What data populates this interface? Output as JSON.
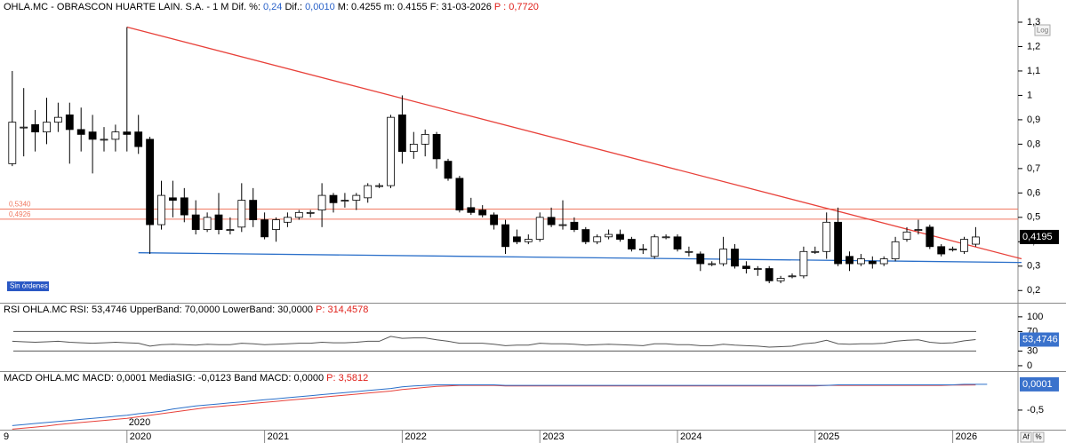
{
  "header": [
    {
      "text": "OHLA.MC - OBRASCON HUARTE LAIN. S.A.  -  1 M Dif. %: ",
      "color": "#000000"
    },
    {
      "text": "0,24",
      "color": "#2a62c9"
    },
    {
      "text": "  Dif.: ",
      "color": "#000000"
    },
    {
      "text": "0,0010",
      "color": "#2a62c9"
    },
    {
      "text": "  M: 0.4255  m: 0.4155  F: 31-03-2026  ",
      "color": "#000000"
    },
    {
      "text": "P : 0,7720",
      "color": "#e0201a"
    }
  ],
  "buttons": {
    "log": "Log",
    "af": "Af",
    "pct": "%"
  },
  "chart_data": [
    {
      "type": "candlestick",
      "xaxis_start_label": "9",
      "note": "Sin órdenes",
      "categories": [
        null,
        null,
        null,
        null,
        null,
        null,
        null,
        null,
        null,
        null,
        "2020",
        null,
        null,
        null,
        null,
        null,
        null,
        null,
        null,
        null,
        null,
        null,
        "2021",
        null,
        null,
        null,
        null,
        null,
        null,
        null,
        null,
        null,
        null,
        null,
        "2022",
        null,
        null,
        null,
        null,
        null,
        null,
        null,
        null,
        null,
        null,
        null,
        "2023",
        null,
        null,
        null,
        null,
        null,
        null,
        null,
        null,
        null,
        null,
        null,
        "2024",
        null,
        null,
        null,
        null,
        null,
        null,
        null,
        null,
        null,
        null,
        null,
        "2025",
        null,
        null,
        null,
        null,
        null,
        null,
        null,
        null,
        null,
        null,
        null,
        "2026",
        null,
        null
      ],
      "open": [
        0.72,
        0.87,
        0.88,
        0.85,
        0.89,
        0.92,
        0.86,
        0.85,
        0.82,
        0.82,
        0.85,
        0.85,
        0.82,
        0.47,
        0.58,
        0.58,
        0.51,
        0.45,
        0.51,
        0.45,
        0.46,
        0.57,
        0.49,
        0.45,
        0.48,
        0.5,
        0.52,
        0.53,
        0.59,
        0.57,
        0.57,
        0.58,
        0.63,
        0.63,
        0.92,
        0.77,
        0.8,
        0.84,
        0.73,
        0.66,
        0.54,
        0.53,
        0.51,
        0.47,
        0.42,
        0.4,
        0.41,
        0.5,
        0.47,
        0.48,
        0.45,
        0.4,
        0.42,
        0.43,
        0.41,
        0.37,
        0.34,
        0.42,
        0.42,
        0.36,
        0.35,
        0.31,
        0.31,
        0.37,
        0.3,
        0.29,
        0.29,
        0.24,
        0.26,
        0.26,
        0.36,
        0.36,
        0.48,
        0.34,
        0.31,
        0.32,
        0.31,
        0.33,
        0.41,
        0.45,
        0.46,
        0.38,
        0.37,
        0.36,
        0.39
      ],
      "high": [
        1.1,
        1.03,
        0.94,
        0.99,
        0.97,
        0.97,
        0.95,
        0.92,
        0.87,
        0.88,
        1.28,
        0.92,
        0.83,
        0.65,
        0.65,
        0.62,
        0.57,
        0.52,
        0.6,
        0.5,
        0.64,
        0.62,
        0.52,
        0.5,
        0.52,
        0.53,
        0.53,
        0.64,
        0.6,
        0.6,
        0.6,
        0.64,
        0.64,
        0.92,
        1.0,
        0.85,
        0.86,
        0.85,
        0.74,
        0.67,
        0.58,
        0.55,
        0.52,
        0.49,
        0.45,
        0.43,
        0.52,
        0.54,
        0.57,
        0.5,
        0.46,
        0.43,
        0.45,
        0.45,
        0.42,
        0.39,
        0.43,
        0.43,
        0.43,
        0.38,
        0.36,
        0.32,
        0.42,
        0.39,
        0.32,
        0.3,
        0.3,
        0.26,
        0.27,
        0.38,
        0.38,
        0.52,
        0.54,
        0.36,
        0.35,
        0.34,
        0.34,
        0.42,
        0.46,
        0.49,
        0.47,
        0.39,
        0.38,
        0.42,
        0.46
      ],
      "low": [
        0.71,
        0.75,
        0.77,
        0.8,
        0.85,
        0.72,
        0.77,
        0.68,
        0.77,
        0.77,
        0.77,
        0.76,
        0.35,
        0.45,
        0.5,
        0.48,
        0.43,
        0.44,
        0.43,
        0.43,
        0.44,
        0.46,
        0.41,
        0.4,
        0.46,
        0.49,
        0.5,
        0.46,
        0.52,
        0.54,
        0.53,
        0.56,
        0.62,
        0.62,
        0.72,
        0.74,
        0.75,
        0.7,
        0.65,
        0.52,
        0.51,
        0.5,
        0.45,
        0.35,
        0.39,
        0.39,
        0.4,
        0.46,
        0.45,
        0.44,
        0.39,
        0.39,
        0.41,
        0.4,
        0.36,
        0.35,
        0.33,
        0.41,
        0.36,
        0.34,
        0.28,
        0.3,
        0.3,
        0.29,
        0.27,
        0.26,
        0.23,
        0.23,
        0.25,
        0.25,
        0.35,
        0.33,
        0.3,
        0.28,
        0.3,
        0.29,
        0.3,
        0.32,
        0.4,
        0.43,
        0.37,
        0.34,
        0.36,
        0.35,
        0.38
      ],
      "close": [
        0.89,
        0.87,
        0.85,
        0.89,
        0.91,
        0.86,
        0.84,
        0.82,
        0.82,
        0.85,
        0.84,
        0.79,
        0.47,
        0.59,
        0.57,
        0.51,
        0.45,
        0.5,
        0.45,
        0.45,
        0.57,
        0.49,
        0.42,
        0.49,
        0.5,
        0.52,
        0.52,
        0.59,
        0.56,
        0.57,
        0.59,
        0.63,
        0.63,
        0.91,
        0.77,
        0.8,
        0.84,
        0.74,
        0.66,
        0.53,
        0.52,
        0.51,
        0.47,
        0.38,
        0.4,
        0.41,
        0.5,
        0.47,
        0.47,
        0.45,
        0.4,
        0.42,
        0.43,
        0.41,
        0.37,
        0.37,
        0.42,
        0.42,
        0.37,
        0.36,
        0.31,
        0.31,
        0.37,
        0.3,
        0.29,
        0.29,
        0.24,
        0.25,
        0.26,
        0.36,
        0.36,
        0.48,
        0.31,
        0.31,
        0.33,
        0.31,
        0.33,
        0.4,
        0.44,
        0.45,
        0.38,
        0.35,
        0.37,
        0.41,
        0.4195
      ],
      "up_color": "#ffffff",
      "down_color": "#000000",
      "ylim": [
        0.15,
        1.34
      ],
      "yticks": [
        {
          "value": 1.3,
          "label": "1,3"
        },
        {
          "value": 1.2,
          "label": "1,2"
        },
        {
          "value": 1.1,
          "label": "1,1"
        },
        1,
        {
          "value": 0.9,
          "label": "0,9"
        },
        {
          "value": 0.8,
          "label": "0,8"
        },
        {
          "value": 0.7,
          "label": "0,7"
        },
        {
          "value": 0.6,
          "label": "0,6"
        },
        {
          "value": 0.5,
          "label": "0,5"
        },
        {
          "value": 0.4,
          "label": "0,4"
        },
        {
          "value": 0.3,
          "label": "0,3"
        },
        {
          "value": 0.2,
          "label": "0,2"
        }
      ],
      "last": {
        "value": 0.4195,
        "label": "0,4195"
      },
      "levels": [
        {
          "value": 0.534,
          "label": "0,5340",
          "color": "#f07860"
        },
        {
          "value": 0.4926,
          "label": "0,4926",
          "color": "#f07860"
        }
      ],
      "trendlines": [
        {
          "color": "#e8413a",
          "points": [
            [
              10,
              1.28
            ],
            [
              88,
              0.33
            ]
          ]
        },
        {
          "color": "#2a6fc9",
          "points": [
            [
              11,
              0.355
            ],
            [
              88,
              0.315
            ]
          ]
        }
      ]
    },
    {
      "type": "line",
      "title_parts": [
        {
          "text": "RSI OHLA.MC RSI: 53,4746  UpperBand: 70,0000  LowerBand: 30,0000  ",
          "color": "#000000"
        },
        {
          "text": "P: 314,4578",
          "color": "#e0201a"
        }
      ],
      "series": [
        {
          "color": "#555555",
          "values": [
            50,
            49,
            48,
            49,
            50,
            48,
            47,
            46,
            47,
            48,
            47,
            46,
            40,
            43,
            44,
            43,
            42,
            44,
            43,
            43,
            46,
            45,
            43,
            44,
            45,
            46,
            46,
            48,
            47,
            47,
            48,
            50,
            50,
            60,
            56,
            57,
            57,
            53,
            50,
            46,
            46,
            46,
            44,
            41,
            42,
            42,
            46,
            45,
            45,
            44,
            42,
            43,
            44,
            43,
            42,
            41,
            45,
            45,
            43,
            43,
            41,
            41,
            44,
            42,
            41,
            40,
            38,
            39,
            40,
            45,
            47,
            52,
            45,
            44,
            45,
            45,
            46,
            50,
            52,
            53,
            48,
            46,
            47,
            51,
            53.4746
          ]
        }
      ],
      "bands": [
        70,
        30
      ],
      "ylim": [
        -11,
        127
      ],
      "yticks": [
        100,
        70,
        30,
        0
      ],
      "last": {
        "value": 53.4746,
        "label": "53,4746"
      }
    },
    {
      "type": "line",
      "title_parts": [
        {
          "text": "MACD OHLA.MC MACD: 0,0001  MediaSIG: -0,0123  Band MACD: 0,0000  ",
          "color": "#000000"
        },
        {
          "text": "P: 3,5812",
          "color": "#e0201a"
        }
      ],
      "series": [
        {
          "color": "#e8413a",
          "values": [
            -0.87,
            -0.85,
            -0.83,
            -0.81,
            -0.78,
            -0.76,
            -0.74,
            -0.72,
            -0.7,
            -0.68,
            -0.66,
            -0.63,
            -0.6,
            -0.57,
            -0.54,
            -0.51,
            -0.48,
            -0.45,
            -0.43,
            -0.41,
            -0.39,
            -0.37,
            -0.35,
            -0.33,
            -0.31,
            -0.29,
            -0.27,
            -0.25,
            -0.23,
            -0.21,
            -0.19,
            -0.17,
            -0.15,
            -0.13,
            -0.1,
            -0.08,
            -0.06,
            -0.04,
            -0.03,
            -0.02,
            -0.02,
            -0.02,
            -0.02,
            -0.03,
            -0.03,
            -0.03,
            -0.03,
            -0.03,
            -0.03,
            -0.03,
            -0.03,
            -0.03,
            -0.03,
            -0.03,
            -0.03,
            -0.03,
            -0.03,
            -0.03,
            -0.03,
            -0.03,
            -0.03,
            -0.03,
            -0.03,
            -0.03,
            -0.03,
            -0.03,
            -0.03,
            -0.03,
            -0.03,
            -0.03,
            -0.03,
            -0.02,
            -0.02,
            -0.02,
            -0.02,
            -0.02,
            -0.02,
            -0.02,
            -0.02,
            -0.02,
            -0.02,
            -0.02,
            -0.015,
            -0.013,
            -0.0123
          ]
        },
        {
          "color": "#2a6fc9",
          "values": [
            -0.8,
            -0.78,
            -0.76,
            -0.74,
            -0.72,
            -0.7,
            -0.68,
            -0.66,
            -0.64,
            -0.62,
            -0.6,
            -0.57,
            -0.55,
            -0.52,
            -0.48,
            -0.45,
            -0.42,
            -0.4,
            -0.38,
            -0.36,
            -0.34,
            -0.32,
            -0.3,
            -0.28,
            -0.26,
            -0.24,
            -0.22,
            -0.2,
            -0.18,
            -0.16,
            -0.14,
            -0.12,
            -0.1,
            -0.08,
            -0.05,
            -0.03,
            -0.02,
            -0.01,
            -0.01,
            -0.01,
            -0.01,
            -0.01,
            -0.01,
            -0.02,
            -0.02,
            -0.02,
            -0.02,
            -0.02,
            -0.02,
            -0.02,
            -0.02,
            -0.02,
            -0.02,
            -0.02,
            -0.02,
            -0.02,
            -0.02,
            -0.02,
            -0.02,
            -0.02,
            -0.02,
            -0.02,
            -0.02,
            -0.02,
            -0.02,
            -0.02,
            -0.02,
            -0.02,
            -0.02,
            -0.02,
            -0.02,
            -0.02,
            -0.01,
            -0.01,
            -0.01,
            -0.01,
            -0.01,
            -0.01,
            -0.01,
            -0.01,
            -0.01,
            -0.01,
            -0.01,
            0,
            0,
            0.0001
          ]
        }
      ],
      "ylim": [
        -0.88,
        0.24
      ],
      "yticks": [
        {
          "value": -0.5,
          "label": "-0,5"
        }
      ],
      "last": {
        "value": 0.0001,
        "label": "0,0001"
      }
    }
  ]
}
